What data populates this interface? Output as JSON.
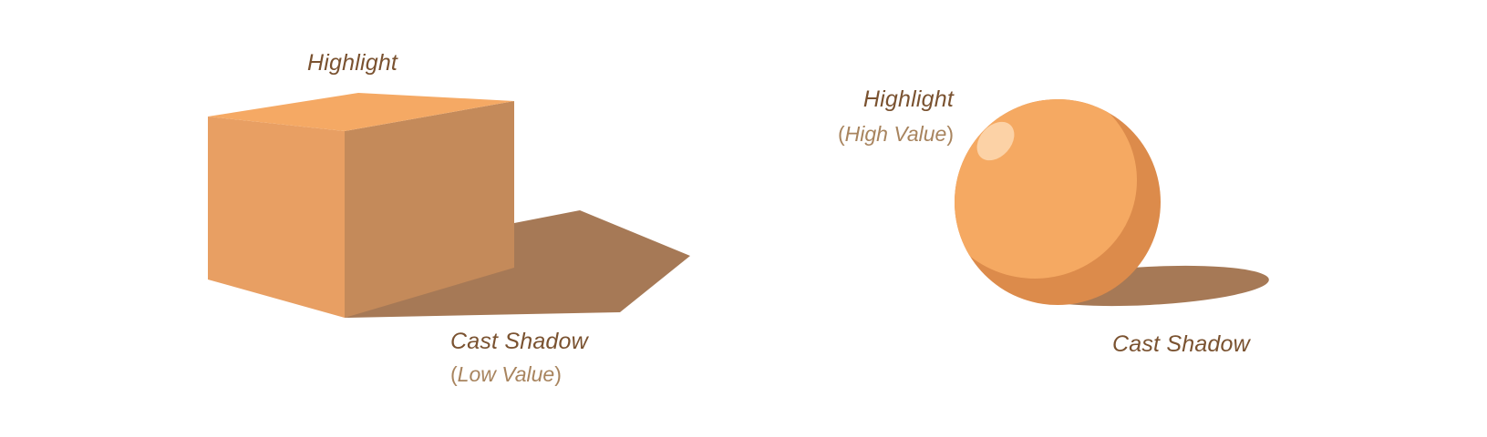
{
  "colors": {
    "label": "#7a5230",
    "sublabel": "#a8845e",
    "cube_top": "#f5a964",
    "cube_front": "#e89f63",
    "cube_side": "#c48a5a",
    "shadow": "#a67956",
    "sphere_base": "#dc8b4b",
    "sphere_light": "#f5a962",
    "sphere_highlight": "#fcd2a6"
  },
  "cube": {
    "top_label": "Highlight",
    "shadow_label": "Cast Shadow",
    "shadow_sub": {
      "open": "(",
      "text": "Low Value",
      "close": ")"
    }
  },
  "sphere": {
    "top_label": "Highlight",
    "top_sub": {
      "open": "(",
      "text": "High Value",
      "close": ")"
    },
    "shadow_label": "Cast Shadow"
  }
}
